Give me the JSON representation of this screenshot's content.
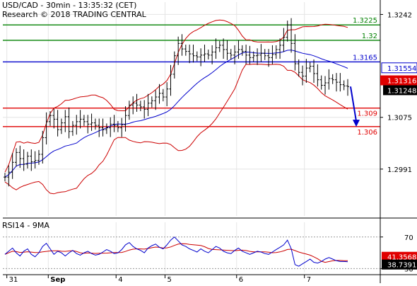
{
  "header": {
    "line1": "USD/CAD - 30min - 13:35:32 (CET)",
    "line2": "Research © 2018 TRADING CENTRAL"
  },
  "rsi_title": "RSI14 - 9MA",
  "colors": {
    "candle": "#000000",
    "bollinger": "#cc0000",
    "ma": "#0000cc",
    "resistance": "#008000",
    "pivot": "#0000cc",
    "support": "#e00000",
    "arrow": "#0000cc",
    "rsi": "#0000cc",
    "rsi_ma": "#cc0000",
    "current_bg": "#000000",
    "bid_bg": "#e00000"
  },
  "chart_data": [
    {
      "type": "line",
      "name": "price",
      "x_ticks": [
        "31",
        "Sep",
        "4",
        "5",
        "6",
        "7"
      ],
      "y_ticks": [
        "1.3242",
        "1.3075",
        "1.2991"
      ],
      "ylim": [
        1.2915,
        1.3262
      ],
      "levels": [
        {
          "value": 1.3225,
          "label": "1.3225",
          "kind": "resistance"
        },
        {
          "value": 1.32,
          "label": "1.32",
          "kind": "resistance"
        },
        {
          "value": 1.3165,
          "label": "1.3165",
          "kind": "pivot"
        },
        {
          "value": 1.309,
          "label": "1.309",
          "kind": "support"
        },
        {
          "value": 1.306,
          "label": "1.306",
          "kind": "support"
        }
      ],
      "price_tags": [
        {
          "value": 1.31554,
          "label": "1.31554",
          "style": "pivot"
        },
        {
          "value": 1.31316,
          "label": "1.31316",
          "style": "bid"
        },
        {
          "value": 1.31248,
          "label": "1.31248",
          "style": "current"
        }
      ],
      "arrow": {
        "from": 1.3125,
        "to": 1.3062
      },
      "close": [
        1.2978,
        1.2986,
        1.3002,
        1.3018,
        1.3008,
        1.2999,
        1.3012,
        1.3003,
        1.3005,
        1.3015,
        1.3042,
        1.3068,
        1.3078,
        1.3072,
        1.3055,
        1.3066,
        1.3076,
        1.3052,
        1.3062,
        1.3068,
        1.3072,
        1.3068,
        1.3064,
        1.3066,
        1.3062,
        1.3058,
        1.3055,
        1.3058,
        1.3064,
        1.3062,
        1.3058,
        1.3063,
        1.3078,
        1.3095,
        1.3098,
        1.3095,
        1.3092,
        1.3088,
        1.3098,
        1.3102,
        1.3108,
        1.3114,
        1.3108,
        1.3121,
        1.3145,
        1.3175,
        1.3195,
        1.3186,
        1.3182,
        1.3178,
        1.3175,
        1.3173,
        1.3176,
        1.3178,
        1.3176,
        1.3181,
        1.3188,
        1.3192,
        1.3185,
        1.3179,
        1.3176,
        1.3181,
        1.3185,
        1.3182,
        1.3176,
        1.3172,
        1.3175,
        1.3176,
        1.3179,
        1.3175,
        1.3172,
        1.3177,
        1.3185,
        1.3192,
        1.3205,
        1.3225,
        1.3195,
        1.3162,
        1.3148,
        1.3142,
        1.3155,
        1.3158,
        1.3146,
        1.3136,
        1.3127,
        1.3131,
        1.3138,
        1.3136,
        1.3132,
        1.3128,
        1.3126,
        1.3125
      ]
    },
    {
      "type": "line",
      "name": "RSI14",
      "y_ticks": [
        "70",
        "30"
      ],
      "ylim": [
        25,
        85
      ],
      "value_tags": [
        {
          "value": 41.3568,
          "label": "41.3568",
          "style": "bid"
        },
        {
          "value": 38.7391,
          "label": "38.7391",
          "style": "current"
        }
      ],
      "rsi": [
        48,
        52,
        56,
        50,
        46,
        52,
        55,
        48,
        45,
        50,
        58,
        62,
        55,
        48,
        52,
        50,
        46,
        50,
        53,
        49,
        47,
        50,
        52,
        49,
        47,
        48,
        51,
        54,
        52,
        49,
        50,
        54,
        60,
        63,
        58,
        55,
        53,
        50,
        56,
        59,
        61,
        57,
        55,
        60,
        66,
        70,
        65,
        60,
        58,
        55,
        53,
        51,
        55,
        52,
        50,
        54,
        58,
        56,
        52,
        50,
        49,
        53,
        56,
        52,
        50,
        48,
        50,
        52,
        51,
        49,
        48,
        51,
        54,
        57,
        60,
        66,
        55,
        35,
        33,
        36,
        39,
        42,
        38,
        37,
        39,
        42,
        44,
        42,
        40,
        39,
        39,
        38.7
      ]
    }
  ]
}
